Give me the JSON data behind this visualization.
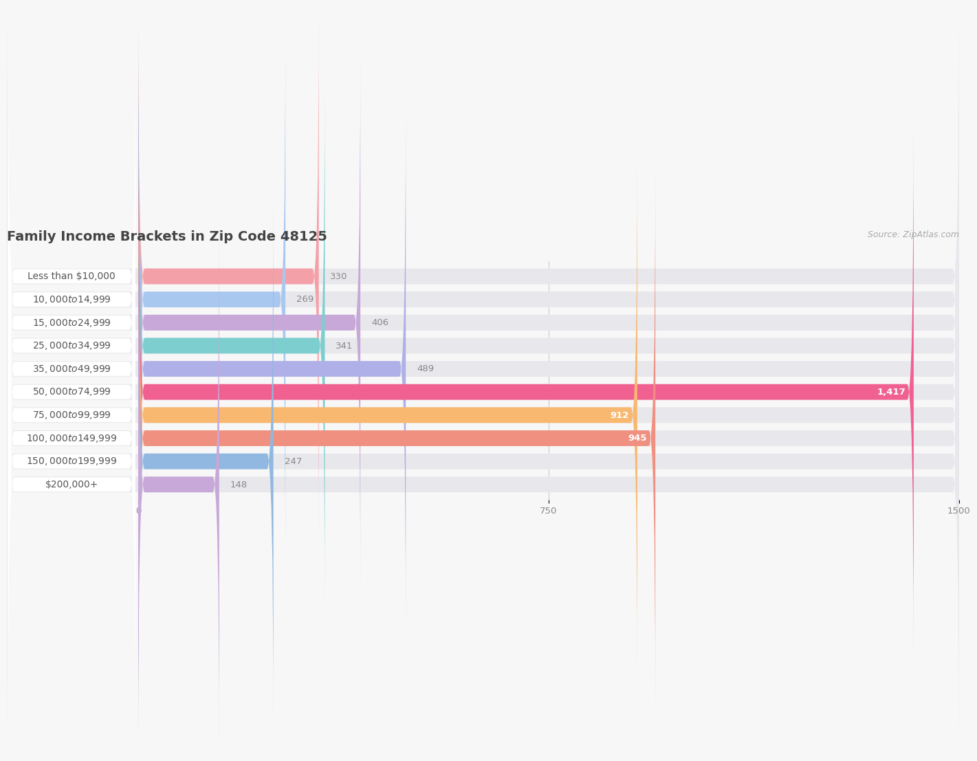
{
  "title": "Family Income Brackets in Zip Code 48125",
  "source": "Source: ZipAtlas.com",
  "categories": [
    "Less than $10,000",
    "$10,000 to $14,999",
    "$15,000 to $24,999",
    "$25,000 to $34,999",
    "$35,000 to $49,999",
    "$50,000 to $74,999",
    "$75,000 to $99,999",
    "$100,000 to $149,999",
    "$150,000 to $199,999",
    "$200,000+"
  ],
  "values": [
    330,
    269,
    406,
    341,
    489,
    1417,
    912,
    945,
    247,
    148
  ],
  "bar_colors": [
    "#f4a0a8",
    "#a8c8f0",
    "#c8a8d8",
    "#7dcece",
    "#b0b0e8",
    "#f06090",
    "#f8b870",
    "#f09080",
    "#90b8e0",
    "#c8a8d8"
  ],
  "label_colors_outside": [
    "#666666",
    "#666666",
    "#666666",
    "#666666",
    "#666666",
    "#666666",
    "#666666",
    "#666666",
    "#666666",
    "#666666"
  ],
  "value_inside_color": "#ffffff",
  "value_outside_color": "#888888",
  "value_inside_threshold": 500,
  "xlim_left": -240,
  "xlim_right": 1500,
  "xticks": [
    0,
    750,
    1500
  ],
  "background_color": "#f7f7f7",
  "bar_bg_color": "#e8e8ec",
  "bar_height": 0.68,
  "bar_gap": 1.0,
  "title_fontsize": 14,
  "label_fontsize": 10,
  "value_fontsize": 9.5,
  "source_fontsize": 9
}
